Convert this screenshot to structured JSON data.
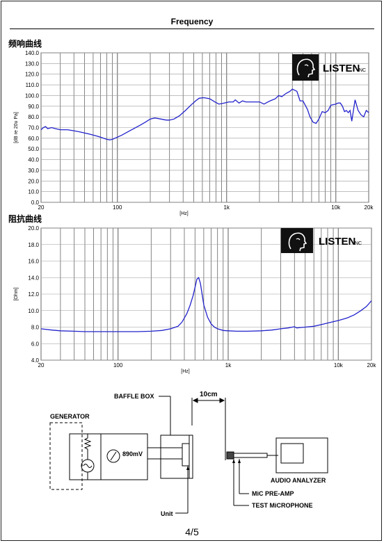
{
  "page": {
    "title": "Frequency",
    "page_number": "4/5"
  },
  "logo": {
    "text": "LISTEN",
    "suffix": "INC"
  },
  "chart_data": [
    {
      "type": "line",
      "title": "频响曲线",
      "xlabel": "[Hz]",
      "ylabel": "[dB re 20u Pa]",
      "xscale": "log",
      "xlim": [
        20,
        20000
      ],
      "ylim": [
        0,
        140
      ],
      "x_tick_labels": [
        "20",
        "100",
        "1k",
        "10k",
        "20k"
      ],
      "x_tick_values": [
        20,
        100,
        1000,
        10000,
        20000
      ],
      "y_tick_labels": [
        "0.0",
        "10.0",
        "20.0",
        "30.0",
        "40.0",
        "50.0",
        "60.0",
        "70.0",
        "80.0",
        "90.0",
        "100.0",
        "110.0",
        "120.0",
        "130.0",
        "140.0"
      ],
      "y_tick_values": [
        0,
        10,
        20,
        30,
        40,
        50,
        60,
        70,
        80,
        90,
        100,
        110,
        120,
        130,
        140
      ],
      "grid": true,
      "series": [
        {
          "color": "#2222cc",
          "x": [
            20,
            21,
            22,
            23,
            25,
            27,
            30,
            35,
            40,
            45,
            50,
            55,
            60,
            65,
            70,
            75,
            80,
            85,
            90,
            100,
            110,
            130,
            160,
            180,
            200,
            220,
            250,
            280,
            300,
            330,
            370,
            420,
            470,
            520,
            560,
            620,
            700,
            780,
            850,
            950,
            1050,
            1150,
            1200,
            1300,
            1400,
            1500,
            1700,
            2000,
            2200,
            2500,
            2800,
            3000,
            3200,
            3500,
            3800,
            4000,
            4200,
            4400,
            4700,
            5000,
            5500,
            5800,
            6200,
            6600,
            7000,
            7500,
            8000,
            8500,
            9000,
            10000,
            10500,
            11000,
            11500,
            12000,
            12500,
            13000,
            13500,
            14000,
            15000,
            16000,
            17000,
            18000,
            19000,
            20000
          ],
          "y": [
            68,
            70,
            71,
            69,
            70,
            69,
            68,
            68,
            67,
            66,
            65,
            64,
            63,
            62,
            61,
            60,
            59,
            58.5,
            59,
            61,
            63,
            67,
            72,
            75,
            78,
            79,
            78,
            77,
            77,
            78,
            81,
            86,
            91,
            95,
            97.5,
            98,
            97,
            94,
            92,
            93,
            94,
            94,
            96,
            93,
            95,
            94,
            94,
            94,
            92,
            95,
            97,
            100,
            99,
            102,
            104,
            106,
            105,
            104,
            95,
            95,
            87,
            80,
            75,
            74,
            78,
            85,
            84,
            86,
            91,
            92,
            93,
            93,
            90,
            85,
            86,
            84,
            86,
            76,
            96,
            86,
            82,
            80,
            86,
            84
          ]
        }
      ]
    },
    {
      "type": "line",
      "title": "阻抗曲线",
      "xlabel": "[Hz]",
      "ylabel": "[Ohm]",
      "xscale": "log",
      "xlim": [
        20,
        20000
      ],
      "ylim": [
        4,
        20
      ],
      "x_tick_labels": [
        "20",
        "100",
        "1k",
        "10k",
        "20k"
      ],
      "x_tick_values": [
        20,
        100,
        1000,
        10000,
        20000
      ],
      "y_tick_labels": [
        "4.0",
        "6.0",
        "8.0",
        "10.0",
        "12.0",
        "14.0",
        "16.0",
        "18.0",
        "20.0"
      ],
      "y_tick_values": [
        4,
        6,
        8,
        10,
        12,
        14,
        16,
        18,
        20
      ],
      "grid": true,
      "series": [
        {
          "color": "#2222cc",
          "x": [
            20,
            25,
            30,
            40,
            50,
            70,
            100,
            150,
            200,
            250,
            300,
            350,
            380,
            420,
            450,
            480,
            500,
            520,
            540,
            560,
            580,
            600,
            650,
            700,
            750,
            800,
            900,
            1000,
            1200,
            1500,
            2000,
            2500,
            3000,
            3500,
            4000,
            4200,
            4500,
            5000,
            6000,
            7000,
            8000,
            10000,
            12000,
            14000,
            16000,
            18000,
            20000
          ],
          "y": [
            7.8,
            7.65,
            7.55,
            7.5,
            7.45,
            7.45,
            7.45,
            7.45,
            7.5,
            7.6,
            7.8,
            8.1,
            8.6,
            9.6,
            10.6,
            11.8,
            12.8,
            13.8,
            14.0,
            13.3,
            12.0,
            10.7,
            9.2,
            8.4,
            8.0,
            7.8,
            7.6,
            7.55,
            7.5,
            7.5,
            7.55,
            7.65,
            7.8,
            7.9,
            8.05,
            7.9,
            7.95,
            8.0,
            8.1,
            8.3,
            8.5,
            8.8,
            9.1,
            9.5,
            10.0,
            10.5,
            11.2
          ]
        }
      ]
    }
  ],
  "diagram": {
    "generator_label": "GENERATOR",
    "voltage_label": "890mV",
    "baffle_label": "BAFFLE BOX",
    "distance_label": "10cm",
    "unit_label": "Unit",
    "analyzer_label": "AUDIO ANALYZER",
    "preamp_label": "MiC PRE-AMP",
    "mic_label": "TEST MiCROPHONE"
  }
}
